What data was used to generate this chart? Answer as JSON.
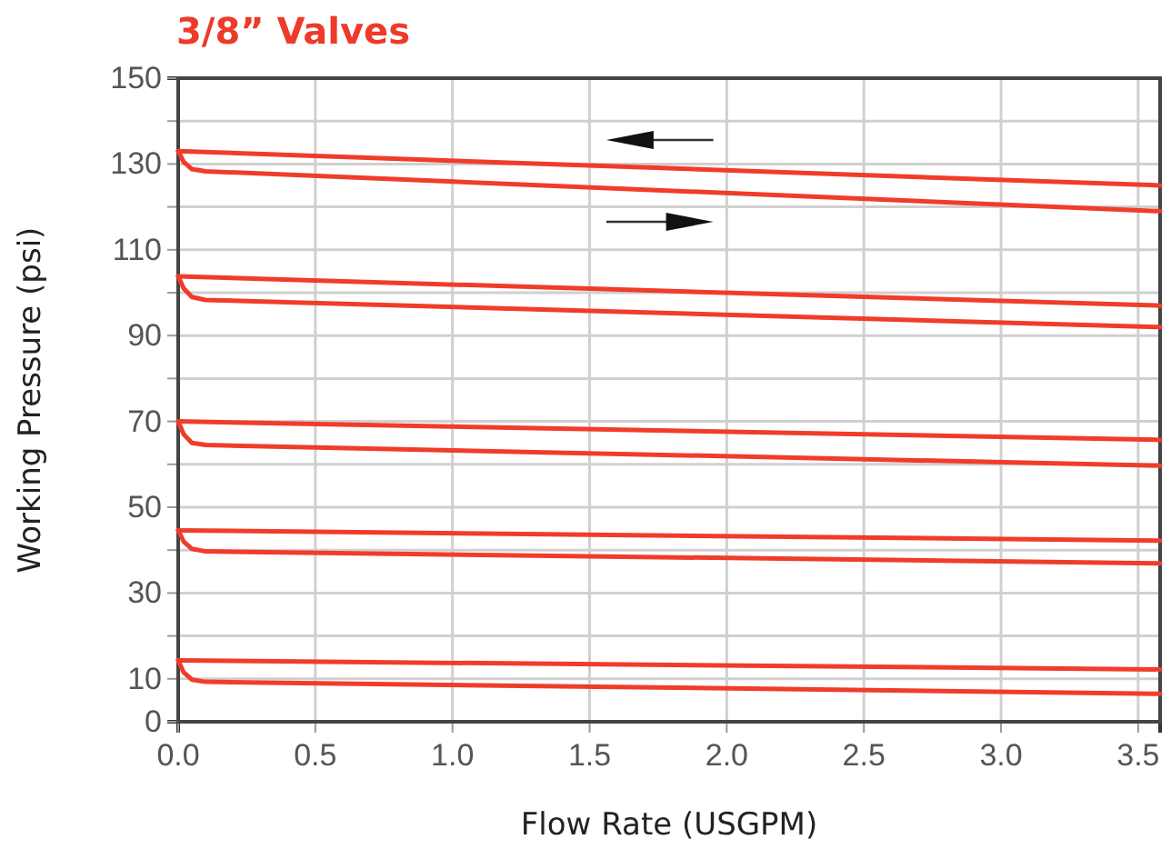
{
  "chart_data": {
    "type": "line",
    "title": "3/8” Valves",
    "xlabel": "Flow Rate (USGPM)",
    "ylabel": "Working Pressure (psi)",
    "xlim": [
      0,
      3.58
    ],
    "ylim": [
      0,
      150
    ],
    "xticks": [
      {
        "value": 0,
        "label": "0.0"
      },
      {
        "value": 0.5,
        "label": "0.5"
      },
      {
        "value": 1,
        "label": "1.0"
      },
      {
        "value": 1.5,
        "label": "1.5"
      },
      {
        "value": 2,
        "label": "2.0"
      },
      {
        "value": 2.5,
        "label": "2.5"
      },
      {
        "value": 3,
        "label": "3.0"
      },
      {
        "value": 3.5,
        "label": "3.5"
      }
    ],
    "yticks": [
      0,
      10,
      {
        "value": 20,
        "label": null
      },
      30,
      {
        "value": 40,
        "label": null
      },
      50,
      {
        "value": 60,
        "label": null
      },
      70,
      {
        "value": 80,
        "label": null
      },
      90,
      {
        "value": 100,
        "label": null
      },
      110,
      {
        "value": 120,
        "label": null
      },
      130,
      {
        "value": 140,
        "label": null
      },
      150
    ],
    "grid": true,
    "marker": "none",
    "line_style": "solid",
    "series": [
      {
        "color": "#f03c2a",
        "x": [
          0,
          3.58
        ],
        "values": [
          133,
          125
        ]
      },
      {
        "color": "#f03c2a",
        "x": [
          0,
          0.02,
          0.05,
          0.1,
          3.58
        ],
        "values": [
          133,
          130.5,
          128.8,
          128.3,
          119
        ]
      },
      {
        "color": "#f03c2a",
        "x": [
          0,
          3.58
        ],
        "values": [
          103.8,
          97
        ]
      },
      {
        "color": "#f03c2a",
        "x": [
          0,
          0.02,
          0.05,
          0.1,
          3.58
        ],
        "values": [
          103.8,
          101,
          99,
          98.3,
          92
        ]
      },
      {
        "color": "#f03c2a",
        "x": [
          0,
          3.58
        ],
        "values": [
          70,
          65.7
        ]
      },
      {
        "color": "#f03c2a",
        "x": [
          0,
          0.02,
          0.05,
          0.1,
          3.58
        ],
        "values": [
          70,
          67,
          65,
          64.5,
          59.7
        ]
      },
      {
        "color": "#f03c2a",
        "x": [
          0,
          3.58
        ],
        "values": [
          44.6,
          42.2
        ]
      },
      {
        "color": "#f03c2a",
        "x": [
          0,
          0.02,
          0.05,
          0.1,
          3.58
        ],
        "values": [
          44.6,
          42,
          40.3,
          39.7,
          36.9
        ]
      },
      {
        "color": "#f03c2a",
        "x": [
          0,
          3.58
        ],
        "values": [
          14.3,
          12.2
        ]
      },
      {
        "color": "#f03c2a",
        "x": [
          0,
          0.02,
          0.05,
          0.1,
          3.58
        ],
        "values": [
          14.3,
          11.5,
          9.8,
          9.3,
          6.5
        ]
      }
    ]
  }
}
